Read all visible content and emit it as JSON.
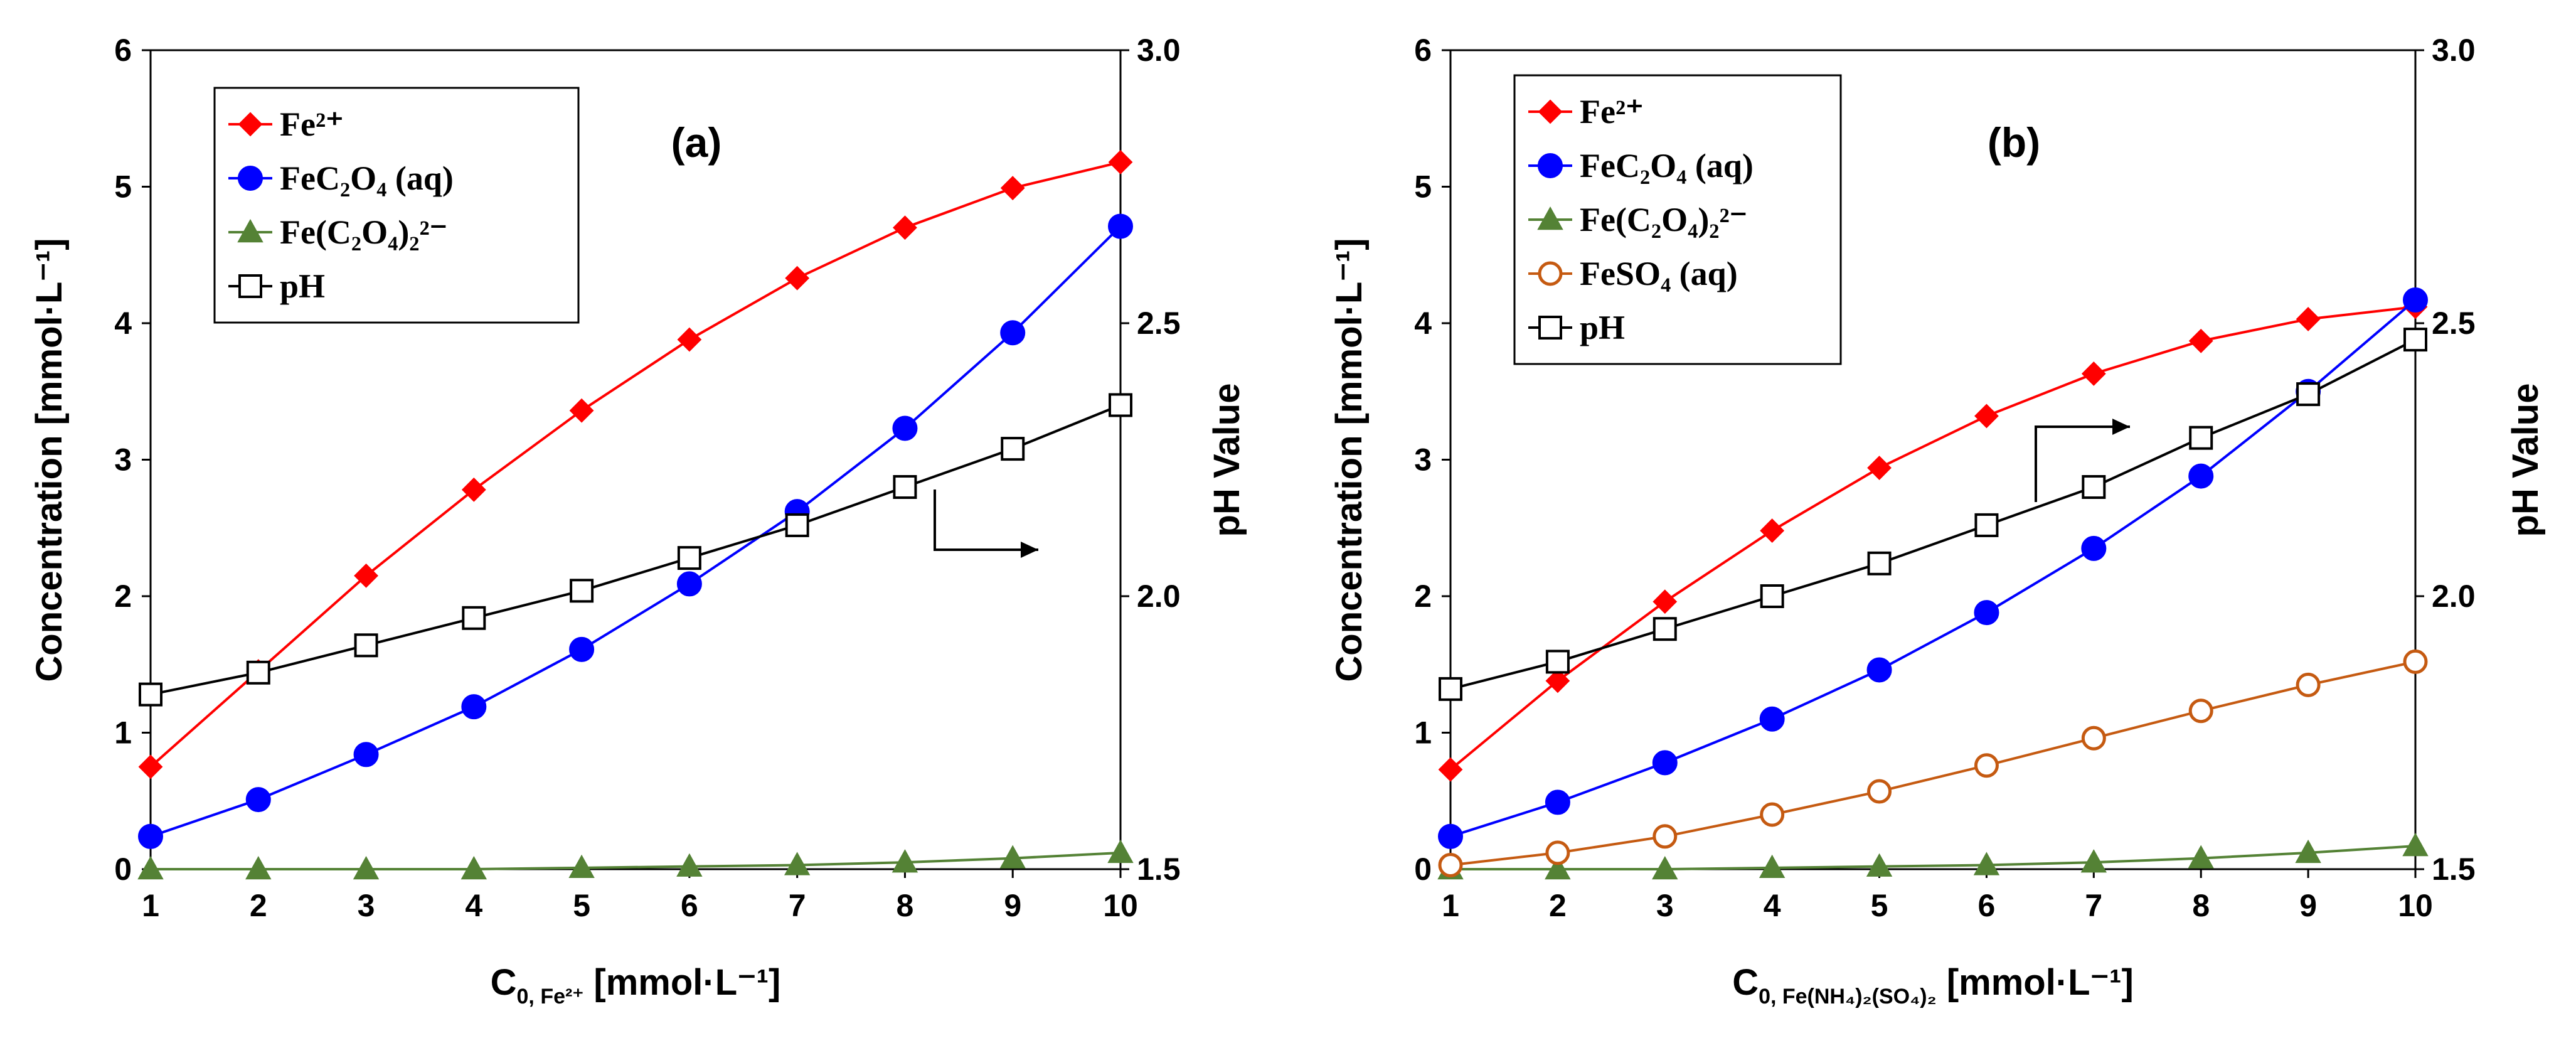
{
  "chart_data": [
    {
      "type": "line",
      "panel_label": "(a)",
      "xlabel": "C",
      "xlabel_sub": "0, Fe²⁺",
      "xlabel_unit": " [mmol·L⁻¹]",
      "ylabel": "Concentration [mmol·L⁻¹]",
      "y2label": "pH Value",
      "x": [
        1,
        2,
        3,
        4,
        5,
        6,
        7,
        8,
        9,
        10
      ],
      "xlim": [
        1,
        10
      ],
      "ylim": [
        0,
        6
      ],
      "y2lim": [
        1.5,
        3.0
      ],
      "xticks": [
        "1",
        "2",
        "3",
        "4",
        "5",
        "6",
        "7",
        "8",
        "9",
        "10"
      ],
      "yticks": [
        "0",
        "1",
        "2",
        "3",
        "4",
        "5",
        "6"
      ],
      "y2ticks": [
        "1.5",
        "2.0",
        "2.5",
        "3.0"
      ],
      "legend_position": "top-left",
      "series": [
        {
          "name": "Fe²⁺",
          "axis": "left",
          "color": "#ff0000",
          "marker": "diamond",
          "filled": true,
          "values": [
            0.75,
            1.45,
            2.15,
            2.78,
            3.36,
            3.88,
            4.33,
            4.7,
            4.99,
            5.18
          ]
        },
        {
          "name": "FeC₂O₄ (aq)",
          "axis": "left",
          "color": "#0000ff",
          "marker": "circle",
          "filled": true,
          "values": [
            0.24,
            0.51,
            0.84,
            1.19,
            1.61,
            2.09,
            2.62,
            3.23,
            3.93,
            4.71
          ]
        },
        {
          "name": "Fe(C₂O₄)₂²⁻",
          "axis": "left",
          "color": "#548235",
          "marker": "triangle",
          "filled": true,
          "values": [
            0.0,
            0.0,
            0.0,
            0.0,
            0.01,
            0.02,
            0.03,
            0.05,
            0.08,
            0.12
          ]
        },
        {
          "name": "pH",
          "axis": "right",
          "color": "#000000",
          "marker": "square",
          "filled": false,
          "values": [
            1.82,
            1.86,
            1.91,
            1.96,
            2.01,
            2.07,
            2.13,
            2.2,
            2.27,
            2.35
          ]
        }
      ],
      "annotation": "arrow pointing to pH axis"
    },
    {
      "type": "line",
      "panel_label": "(b)",
      "xlabel": "C",
      "xlabel_sub": "0, Fe(NH₄)₂(SO₄)₂",
      "xlabel_unit": " [mmol·L⁻¹]",
      "ylabel": "Concentration [mmol·L⁻¹]",
      "y2label": "pH Value",
      "x": [
        1,
        2,
        3,
        4,
        5,
        6,
        7,
        8,
        9,
        10
      ],
      "xlim": [
        1,
        10
      ],
      "ylim": [
        0,
        6
      ],
      "y2lim": [
        1.5,
        3.0
      ],
      "xticks": [
        "1",
        "2",
        "3",
        "4",
        "5",
        "6",
        "7",
        "8",
        "9",
        "10"
      ],
      "yticks": [
        "0",
        "1",
        "2",
        "3",
        "4",
        "5",
        "6"
      ],
      "y2ticks": [
        "1.5",
        "2.0",
        "2.5",
        "3.0"
      ],
      "legend_position": "top-left",
      "series": [
        {
          "name": "Fe²⁺",
          "axis": "left",
          "color": "#ff0000",
          "marker": "diamond",
          "filled": true,
          "values": [
            0.73,
            1.38,
            1.96,
            2.48,
            2.94,
            3.32,
            3.63,
            3.87,
            4.03,
            4.12
          ]
        },
        {
          "name": "FeC₂O₄ (aq)",
          "axis": "left",
          "color": "#0000ff",
          "marker": "circle",
          "filled": true,
          "values": [
            0.24,
            0.49,
            0.78,
            1.1,
            1.46,
            1.88,
            2.35,
            2.88,
            3.5,
            4.17
          ]
        },
        {
          "name": "Fe(C₂O₄)₂²⁻",
          "axis": "left",
          "color": "#548235",
          "marker": "triangle",
          "filled": true,
          "values": [
            0.0,
            0.0,
            0.0,
            0.01,
            0.02,
            0.03,
            0.05,
            0.08,
            0.12,
            0.17
          ]
        },
        {
          "name": "FeSO₄ (aq)",
          "axis": "left",
          "color": "#c55a11",
          "marker": "circle",
          "filled": false,
          "values": [
            0.03,
            0.12,
            0.24,
            0.4,
            0.57,
            0.76,
            0.96,
            1.16,
            1.35,
            1.52
          ]
        },
        {
          "name": "pH",
          "axis": "right",
          "color": "#000000",
          "marker": "square",
          "filled": false,
          "values": [
            1.83,
            1.88,
            1.94,
            2.0,
            2.06,
            2.13,
            2.2,
            2.29,
            2.37,
            2.47
          ]
        }
      ],
      "annotation": "arrow pointing to pH axis"
    }
  ]
}
